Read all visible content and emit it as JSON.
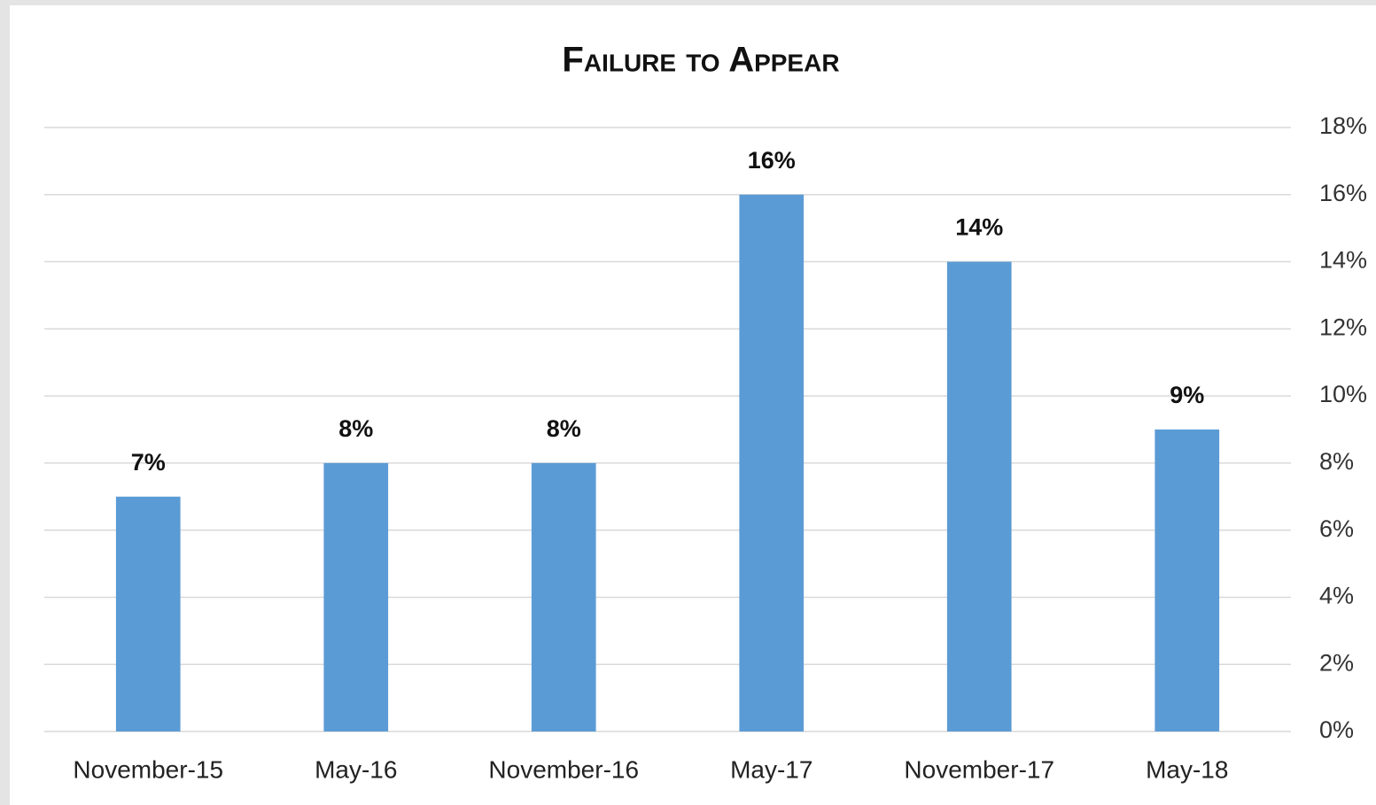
{
  "chart_data": {
    "type": "bar",
    "title": "Failure to Appear",
    "categories": [
      "November-15",
      "May-16",
      "November-16",
      "May-17",
      "November-17",
      "May-18"
    ],
    "values": [
      7,
      8,
      8,
      16,
      14,
      9
    ],
    "value_labels": [
      "7%",
      "8%",
      "8%",
      "16%",
      "14%",
      "9%"
    ],
    "color": "#5b9bd5",
    "ylim": [
      0,
      18
    ],
    "yticks": [
      {
        "value": 0,
        "label": "0%"
      },
      {
        "value": 2,
        "label": "2%"
      },
      {
        "value": 4,
        "label": "4%"
      },
      {
        "value": 6,
        "label": "6%"
      },
      {
        "value": 8,
        "label": "8%"
      },
      {
        "value": 10,
        "label": "10%"
      },
      {
        "value": 12,
        "label": "12%"
      },
      {
        "value": 14,
        "label": "14%"
      },
      {
        "value": 16,
        "label": "16%"
      },
      {
        "value": 18,
        "label": "18%"
      }
    ],
    "grid": true,
    "y_axis_side": "right"
  }
}
